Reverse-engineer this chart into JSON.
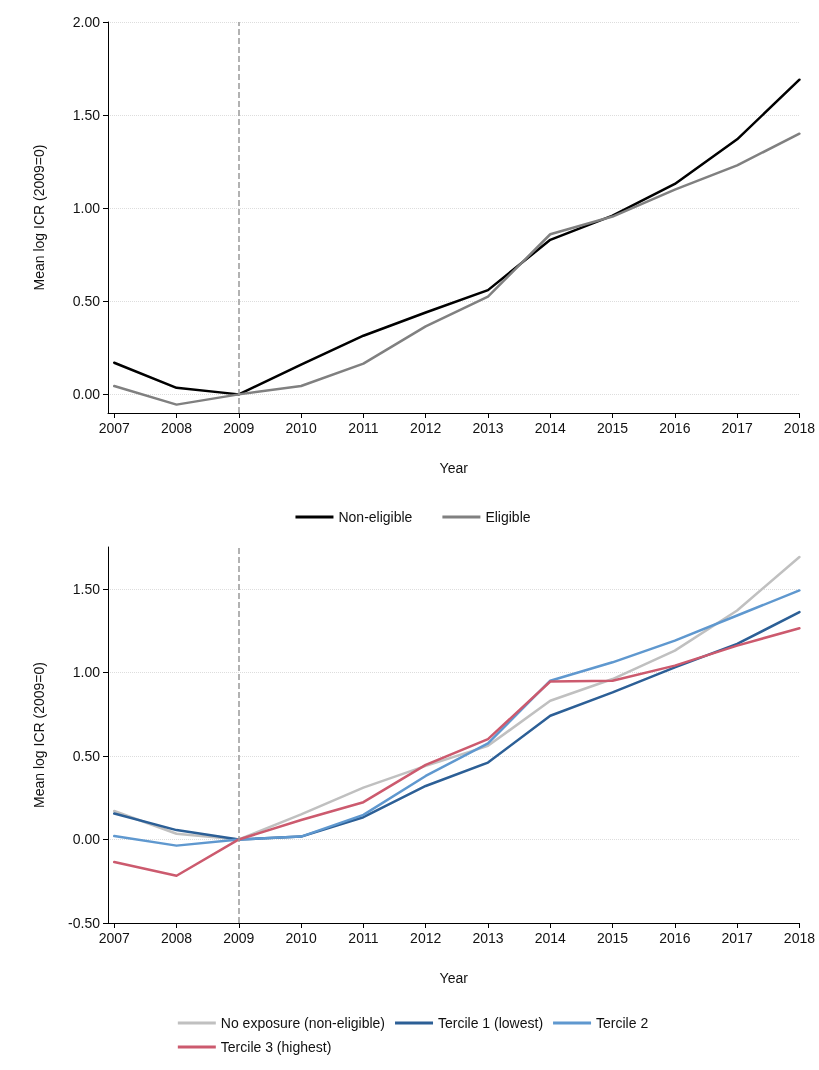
{
  "chart_data": [
    {
      "type": "line",
      "xlabel": "Year",
      "ylabel": "Mean log ICR (2009=0)",
      "x": [
        2007,
        2008,
        2009,
        2010,
        2011,
        2012,
        2013,
        2014,
        2015,
        2016,
        2017,
        2018
      ],
      "series": [
        {
          "name": "Non-eligible",
          "color": "#000000",
          "values": [
            0.17,
            0.035,
            0,
            0.16,
            0.315,
            0.44,
            0.56,
            0.83,
            0.96,
            1.13,
            1.37,
            1.69
          ]
        },
        {
          "name": "Eligible",
          "color": "#808080",
          "values": [
            0.045,
            -0.055,
            0,
            0.045,
            0.165,
            0.365,
            0.525,
            0.86,
            0.955,
            1.1,
            1.23,
            1.4
          ]
        }
      ],
      "xlim": [
        2006.9,
        2018
      ],
      "xticks": [
        2007,
        2008,
        2009,
        2010,
        2011,
        2012,
        2013,
        2014,
        2015,
        2016,
        2017,
        2018
      ],
      "ylim": [
        -0.1,
        2
      ],
      "yticks": [
        {
          "value": 0,
          "label": "0.00"
        },
        {
          "value": 0.5,
          "label": "0.50"
        },
        {
          "value": 1,
          "label": "1.00"
        },
        {
          "value": 1.5,
          "label": "1.50"
        },
        {
          "value": 2,
          "label": "2.00"
        }
      ],
      "grid": "y",
      "legend": "bottom",
      "ref_lines": [
        {
          "axis": "x",
          "value": 2009,
          "color": "#999999",
          "line_style": "dashed"
        }
      ]
    },
    {
      "type": "line",
      "xlabel": "Year",
      "ylabel": "Mean log ICR (2009=0)",
      "x": [
        2007,
        2008,
        2009,
        2010,
        2011,
        2012,
        2013,
        2014,
        2015,
        2016,
        2017,
        2018
      ],
      "series": [
        {
          "name": "No exposure (non-eligible)",
          "color": "#c0c0c0",
          "values": [
            0.17,
            0.034,
            0,
            0.15,
            0.31,
            0.44,
            0.56,
            0.83,
            0.96,
            1.13,
            1.37,
            1.69
          ]
        },
        {
          "name": "Tercile 1 (lowest)",
          "color": "#2c5f96",
          "values": [
            0.155,
            0.056,
            0,
            0.017,
            0.133,
            0.32,
            0.46,
            0.74,
            0.88,
            1.03,
            1.17,
            1.36
          ]
        },
        {
          "name": "Tercile 2",
          "color": "#5f98cf",
          "values": [
            0.02,
            -0.037,
            0,
            0.017,
            0.147,
            0.38,
            0.575,
            0.95,
            1.06,
            1.19,
            1.34,
            1.49
          ]
        },
        {
          "name": "Tercile 3 (highest)",
          "color": "#cc5a6e",
          "values": [
            -0.135,
            -0.217,
            0,
            0.116,
            0.223,
            0.446,
            0.6,
            0.945,
            0.95,
            1.04,
            1.16,
            1.264
          ]
        }
      ],
      "xlim": [
        2006.9,
        2018
      ],
      "xticks": [
        2007,
        2008,
        2009,
        2010,
        2011,
        2012,
        2013,
        2014,
        2015,
        2016,
        2017,
        2018
      ],
      "ylim": [
        -0.5,
        1.75
      ],
      "yticks": [
        {
          "value": -0.5,
          "label": "-0.50"
        },
        {
          "value": 0,
          "label": "0.00"
        },
        {
          "value": 0.5,
          "label": "0.50"
        },
        {
          "value": 1,
          "label": "1.00"
        },
        {
          "value": 1.5,
          "label": "1.50"
        }
      ],
      "grid": "y",
      "legend": "bottom",
      "ref_lines": [
        {
          "axis": "x",
          "value": 2009,
          "color": "#999999",
          "line_style": "dashed"
        }
      ]
    }
  ]
}
